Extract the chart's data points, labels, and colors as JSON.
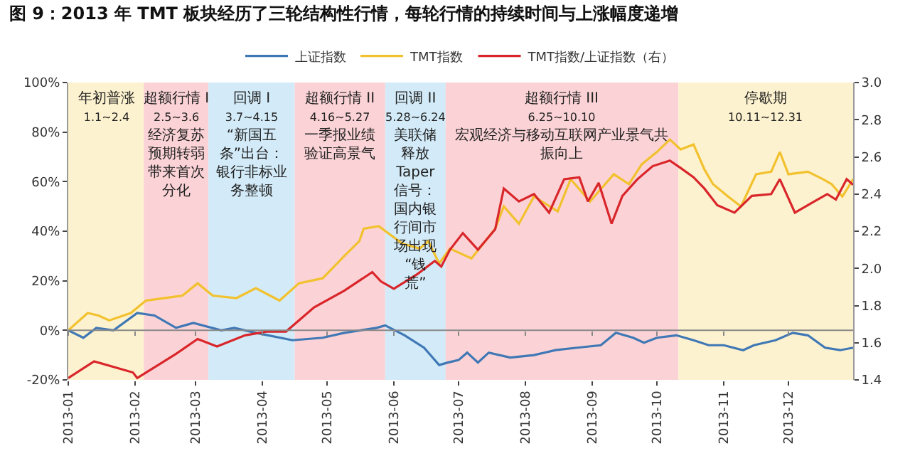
{
  "chart_data": {
    "type": "line",
    "title": "图 9：2013 年 TMT 板块经历了三轮结构性行情，每轮行情的持续时间与上涨幅度递增",
    "legend": "top",
    "grid": false,
    "marker": "none",
    "line_style": "solid",
    "xlim": [
      "2013-01-01",
      "2013-12-31"
    ],
    "xticks": [
      {
        "value": "2013-01-01",
        "label": "2013-01"
      },
      {
        "value": "2013-02-01",
        "label": "2013-02"
      },
      {
        "value": "2013-03-01",
        "label": "2013-03"
      },
      {
        "value": "2013-04-01",
        "label": "2013-04"
      },
      {
        "value": "2013-05-01",
        "label": "2013-05"
      },
      {
        "value": "2013-06-01",
        "label": "2013-06"
      },
      {
        "value": "2013-07-01",
        "label": "2013-07"
      },
      {
        "value": "2013-08-01",
        "label": "2013-08"
      },
      {
        "value": "2013-09-01",
        "label": "2013-09"
      },
      {
        "value": "2013-10-01",
        "label": "2013-10"
      },
      {
        "value": "2013-11-01",
        "label": "2013-11"
      },
      {
        "value": "2013-12-01",
        "label": "2013-12"
      }
    ],
    "ylim": [
      -20,
      100
    ],
    "yticks": [
      {
        "value": -20,
        "label": "-20%"
      },
      {
        "value": 0,
        "label": "0%"
      },
      {
        "value": 20,
        "label": "20%"
      },
      {
        "value": 40,
        "label": "40%"
      },
      {
        "value": 60,
        "label": "60%"
      },
      {
        "value": 80,
        "label": "80%"
      },
      {
        "value": 100,
        "label": "100%"
      }
    ],
    "ref_lines": [
      {
        "axis": "y",
        "value": 0,
        "color": "#888888"
      }
    ],
    "y2lim": [
      1.4,
      3.0
    ],
    "y2ticks": [
      {
        "value": 1.4,
        "label": "1.4"
      },
      {
        "value": 1.6,
        "label": "1.6"
      },
      {
        "value": 1.8,
        "label": "1.8"
      },
      {
        "value": 2.0,
        "label": "2.0"
      },
      {
        "value": 2.2,
        "label": "2.2"
      },
      {
        "value": 2.4,
        "label": "2.4"
      },
      {
        "value": 2.6,
        "label": "2.6"
      },
      {
        "value": 2.8,
        "label": "2.8"
      },
      {
        "value": 3.0,
        "label": "3.0"
      }
    ],
    "bands": [
      {
        "axis": "x",
        "from": "2013-01-01",
        "to": "2013-02-05",
        "color": "#fdf2cf",
        "label": "年初普涨\n1.1~2.4"
      },
      {
        "axis": "x",
        "from": "2013-02-05",
        "to": "2013-03-07",
        "color": "#fbd3d6",
        "label": "超额行情 I\n2.5~3.6\n经济复苏预期转弱带来首次分化"
      },
      {
        "axis": "x",
        "from": "2013-03-07",
        "to": "2013-04-16",
        "color": "#d3ebf8",
        "label": "回调 I\n3.7~4.15\n“新国五条”出台：银行非标业务整顿"
      },
      {
        "axis": "x",
        "from": "2013-04-16",
        "to": "2013-05-28",
        "color": "#fbd3d6",
        "label": "超额行情 II\n4.16~5.27\n一季报业绩验证高景气"
      },
      {
        "axis": "x",
        "from": "2013-05-28",
        "to": "2013-06-25",
        "color": "#d3ebf8",
        "label": "回调 II\n5.28~6.24\n美联储释放Taper信号：国内银行间市场出现“钱荒”"
      },
      {
        "axis": "x",
        "from": "2013-06-25",
        "to": "2013-10-11",
        "color": "#fbd3d6",
        "label": "超额行情 III\n6.25~10.10\n宏观经济与移动互联网产业景气共振向上"
      },
      {
        "axis": "x",
        "from": "2013-10-11",
        "to": "2013-12-31",
        "color": "#fdf2cf",
        "label": "停歇期\n10.11~12.31"
      }
    ],
    "series": [
      {
        "name": "上证指数",
        "color": "#3f78b5",
        "x": [
          "2013-01-01",
          "2013-01-08",
          "2013-01-14",
          "2013-01-22",
          "2013-02-02",
          "2013-02-10",
          "2013-02-20",
          "2013-02-28",
          "2013-03-13",
          "2013-03-19",
          "2013-03-29",
          "2013-04-15",
          "2013-04-29",
          "2013-05-09",
          "2013-05-24",
          "2013-05-28",
          "2013-06-06",
          "2013-06-15",
          "2013-06-22",
          "2013-06-26",
          "2013-07-01",
          "2013-07-05",
          "2013-07-10",
          "2013-07-15",
          "2013-07-25",
          "2013-08-05",
          "2013-08-15",
          "2013-08-25",
          "2013-09-05",
          "2013-09-12",
          "2013-09-20",
          "2013-09-25",
          "2013-10-01",
          "2013-10-10",
          "2013-10-18",
          "2013-10-25",
          "2013-11-01",
          "2013-11-10",
          "2013-11-15",
          "2013-11-25",
          "2013-12-03",
          "2013-12-10",
          "2013-12-18",
          "2013-12-25",
          "2013-12-31"
        ],
        "values": [
          0,
          -3,
          1,
          0,
          7,
          6,
          1,
          3,
          0,
          1,
          -1,
          -4,
          -3,
          -1,
          1,
          2,
          -2,
          -7,
          -14,
          -13,
          -12,
          -9,
          -13,
          -9,
          -11,
          -10,
          -8,
          -7,
          -6,
          -1,
          -3,
          -5,
          -3,
          -2,
          -4,
          -6,
          -6,
          -8,
          -6,
          -4,
          -1,
          -2,
          -7,
          -8,
          -7
        ]
      },
      {
        "name": "TMT指数",
        "color": "#f2c12e",
        "x": [
          "2013-01-01",
          "2013-01-10",
          "2013-01-15",
          "2013-01-20",
          "2013-01-30",
          "2013-02-06",
          "2013-02-23",
          "2013-03-02",
          "2013-03-09",
          "2013-03-20",
          "2013-03-29",
          "2013-04-09",
          "2013-04-18",
          "2013-04-29",
          "2013-05-09",
          "2013-05-16",
          "2013-05-18",
          "2013-05-25",
          "2013-06-05",
          "2013-06-13",
          "2013-06-17",
          "2013-06-22",
          "2013-06-27",
          "2013-07-07",
          "2013-07-18",
          "2013-07-22",
          "2013-07-29",
          "2013-08-05",
          "2013-08-16",
          "2013-08-22",
          "2013-08-31",
          "2013-09-04",
          "2013-09-11",
          "2013-09-18",
          "2013-09-24",
          "2013-10-01",
          "2013-10-07",
          "2013-10-12",
          "2013-10-18",
          "2013-10-23",
          "2013-10-27",
          "2013-11-03",
          "2013-11-09",
          "2013-11-16",
          "2013-11-23",
          "2013-11-27",
          "2013-12-01",
          "2013-12-10",
          "2013-12-17",
          "2013-12-21",
          "2013-12-26",
          "2013-12-31"
        ],
        "values": [
          0,
          7,
          6,
          4,
          7,
          12,
          14,
          19,
          14,
          13,
          17,
          12,
          19,
          21,
          30,
          36,
          41,
          42,
          35,
          33,
          36,
          27,
          33,
          29,
          41,
          50,
          43,
          54,
          48,
          61,
          52,
          56,
          63,
          59,
          67,
          72,
          77,
          73,
          75,
          65,
          59,
          54,
          50,
          63,
          64,
          72,
          63,
          64,
          61,
          59,
          54,
          61
        ]
      },
      {
        "name": "TMT指数/上证指数（右）",
        "color": "#d9262b",
        "axis": "y2",
        "x": [
          "2013-01-01",
          "2013-01-13",
          "2013-01-31",
          "2013-02-02",
          "2013-02-20",
          "2013-03-02",
          "2013-03-11",
          "2013-03-24",
          "2013-04-03",
          "2013-04-12",
          "2013-04-25",
          "2013-05-09",
          "2013-05-22",
          "2013-05-26",
          "2013-06-01",
          "2013-06-12",
          "2013-06-20",
          "2013-06-23",
          "2013-06-27",
          "2013-07-03",
          "2013-07-10",
          "2013-07-18",
          "2013-07-22",
          "2013-07-29",
          "2013-08-05",
          "2013-08-12",
          "2013-08-19",
          "2013-08-26",
          "2013-08-30",
          "2013-09-04",
          "2013-09-10",
          "2013-09-15",
          "2013-09-22",
          "2013-09-29",
          "2013-10-07",
          "2013-10-12",
          "2013-10-18",
          "2013-10-23",
          "2013-10-29",
          "2013-11-06",
          "2013-11-14",
          "2013-11-23",
          "2013-11-27",
          "2013-12-04",
          "2013-12-13",
          "2013-12-19",
          "2013-12-23",
          "2013-12-28",
          "2013-12-31"
        ],
        "values": [
          1.41,
          1.5,
          1.44,
          1.41,
          1.54,
          1.62,
          1.58,
          1.64,
          1.66,
          1.66,
          1.79,
          1.88,
          1.98,
          1.93,
          1.89,
          1.97,
          2.04,
          2.01,
          2.1,
          2.19,
          2.1,
          2.21,
          2.43,
          2.36,
          2.4,
          2.3,
          2.48,
          2.49,
          2.36,
          2.46,
          2.24,
          2.39,
          2.48,
          2.55,
          2.58,
          2.54,
          2.49,
          2.43,
          2.34,
          2.3,
          2.39,
          2.4,
          2.48,
          2.3,
          2.36,
          2.4,
          2.37,
          2.48,
          2.45
        ]
      }
    ]
  }
}
